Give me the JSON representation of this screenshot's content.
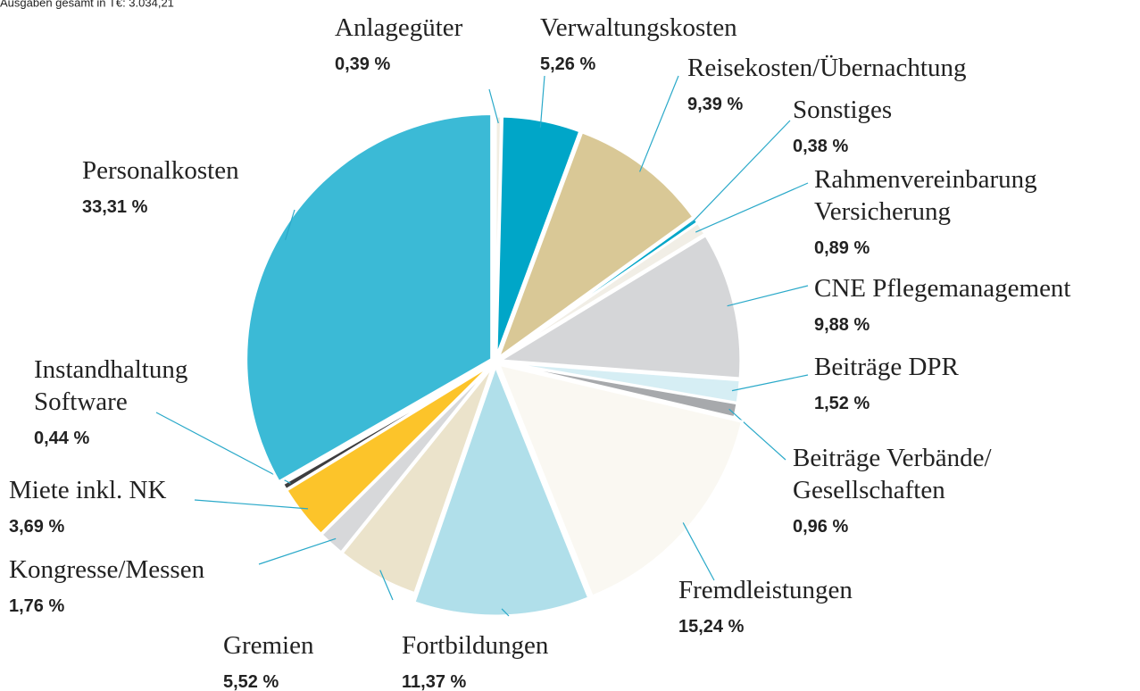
{
  "chart_data": {
    "type": "pie",
    "title": "Ausgaben gesamt in T€: 3.034,21",
    "categories": [
      "Anlagegüter",
      "Verwaltungskosten",
      "Reisekosten/Übernachtung",
      "Sonstiges",
      "Rahmenvereinbarung\nVersicherung",
      "CNE Pflegemanagement",
      "Beiträge DPR",
      "Beiträge Verbände/\nGesellschaften",
      "Fremdleistungen",
      "Fortbildungen",
      "Gremien",
      "Kongresse/Messen",
      "Miete inkl. NK",
      "Instandhaltung\nSoftware",
      "Personalkosten"
    ],
    "values": [
      0.39,
      5.26,
      9.39,
      0.38,
      0.89,
      9.88,
      1.52,
      0.96,
      15.24,
      11.37,
      5.52,
      1.76,
      3.69,
      0.44,
      33.31
    ],
    "value_labels": [
      "0,39 %",
      "5,26 %",
      "9,39 %",
      "0,38 %",
      "0,89 %",
      "9,88 %",
      "1,52 %",
      "0,96 %",
      "15,24 %",
      "11,37 %",
      "5,52 %",
      "1,76 %",
      "3,69 %",
      "0,44 %",
      "33,31 %"
    ],
    "colors": [
      "#f1ede2",
      "#00a6c8",
      "#d9c896",
      "#00a6c8",
      "#f1eee6",
      "#d5d6d8",
      "#d6eef4",
      "#a7a9ac",
      "#faf8f2",
      "#b0dfea",
      "#ebe3cb",
      "#d7d8da",
      "#fcc42a",
      "#3d3d3f",
      "#3bbad6"
    ]
  }
}
